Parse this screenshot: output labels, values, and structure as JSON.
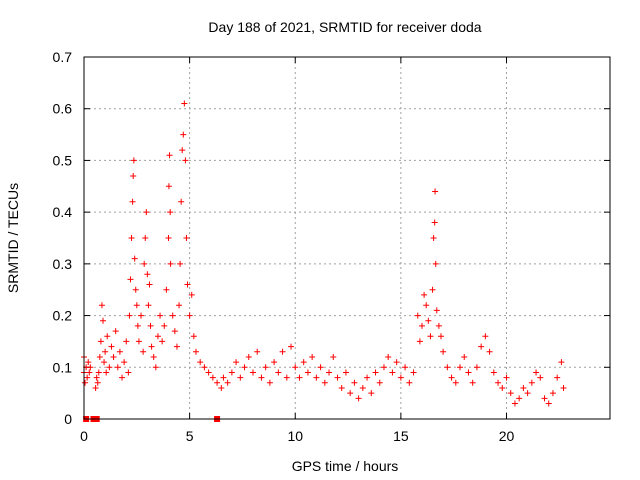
{
  "chart_data": {
    "type": "scatter",
    "title": "Day 188 of 2021, SRMTID for receiver doda",
    "xlabel": "GPS time / hours",
    "ylabel": "SRMTID / TECUs",
    "xlim": [
      0,
      24.9
    ],
    "ylim": [
      0,
      0.7
    ],
    "x_ticks": [
      0,
      5,
      10,
      15,
      20
    ],
    "x_tick_labels": [
      "0",
      "5",
      "10",
      "15",
      "20"
    ],
    "y_ticks": [
      0,
      0.1,
      0.2,
      0.3,
      0.4,
      0.5,
      0.6,
      0.7
    ],
    "y_tick_labels": [
      "0",
      "0.1",
      "0.2",
      "0.3",
      "0.4",
      "0.5",
      "0.6",
      "0.7"
    ],
    "grid": true,
    "marker": "plus",
    "color": "#ff0000",
    "series": [
      {
        "name": "SRMTID",
        "points": [
          [
            0.0,
            0.12
          ],
          [
            0.0,
            0.09
          ],
          [
            0.05,
            0.07
          ],
          [
            0.1,
            0.1
          ],
          [
            0.15,
            0.08
          ],
          [
            0.2,
            0.11
          ],
          [
            0.25,
            0.09
          ],
          [
            0.3,
            0.1
          ],
          [
            0.55,
            0.06
          ],
          [
            0.6,
            0.08
          ],
          [
            0.65,
            0.07
          ],
          [
            0.7,
            0.09
          ],
          [
            0.75,
            0.12
          ],
          [
            0.8,
            0.15
          ],
          [
            0.85,
            0.22
          ],
          [
            0.9,
            0.19
          ],
          [
            0.95,
            0.11
          ],
          [
            1.0,
            0.13
          ],
          [
            1.05,
            0.09
          ],
          [
            1.1,
            0.16
          ],
          [
            1.2,
            0.1
          ],
          [
            1.3,
            0.14
          ],
          [
            1.4,
            0.12
          ],
          [
            1.5,
            0.17
          ],
          [
            1.6,
            0.1
          ],
          [
            1.7,
            0.13
          ],
          [
            1.8,
            0.08
          ],
          [
            1.9,
            0.11
          ],
          [
            2.0,
            0.15
          ],
          [
            2.1,
            0.09
          ],
          [
            2.15,
            0.2
          ],
          [
            2.2,
            0.27
          ],
          [
            2.25,
            0.35
          ],
          [
            2.3,
            0.42
          ],
          [
            2.33,
            0.47
          ],
          [
            2.36,
            0.5
          ],
          [
            2.4,
            0.31
          ],
          [
            2.45,
            0.25
          ],
          [
            2.5,
            0.22
          ],
          [
            2.55,
            0.18
          ],
          [
            2.6,
            0.15
          ],
          [
            2.7,
            0.2
          ],
          [
            2.8,
            0.13
          ],
          [
            2.85,
            0.3
          ],
          [
            2.9,
            0.35
          ],
          [
            2.95,
            0.4
          ],
          [
            3.0,
            0.28
          ],
          [
            3.05,
            0.22
          ],
          [
            3.1,
            0.26
          ],
          [
            3.15,
            0.18
          ],
          [
            3.2,
            0.14
          ],
          [
            3.3,
            0.12
          ],
          [
            3.4,
            0.1
          ],
          [
            3.5,
            0.16
          ],
          [
            3.6,
            0.2
          ],
          [
            3.7,
            0.15
          ],
          [
            3.8,
            0.18
          ],
          [
            3.9,
            0.25
          ],
          [
            4.0,
            0.35
          ],
          [
            4.02,
            0.45
          ],
          [
            4.05,
            0.51
          ],
          [
            4.08,
            0.4
          ],
          [
            4.1,
            0.3
          ],
          [
            4.2,
            0.2
          ],
          [
            4.3,
            0.17
          ],
          [
            4.4,
            0.14
          ],
          [
            4.5,
            0.22
          ],
          [
            4.55,
            0.3
          ],
          [
            4.6,
            0.42
          ],
          [
            4.65,
            0.52
          ],
          [
            4.7,
            0.55
          ],
          [
            4.75,
            0.61
          ],
          [
            4.8,
            0.5
          ],
          [
            4.85,
            0.35
          ],
          [
            4.9,
            0.26
          ],
          [
            5.0,
            0.2
          ],
          [
            5.1,
            0.24
          ],
          [
            5.2,
            0.16
          ],
          [
            5.3,
            0.13
          ],
          [
            5.5,
            0.11
          ],
          [
            5.7,
            0.1
          ],
          [
            5.9,
            0.09
          ],
          [
            6.1,
            0.08
          ],
          [
            6.3,
            0.07
          ],
          [
            6.5,
            0.06
          ],
          [
            6.6,
            0.08
          ],
          [
            6.8,
            0.07
          ],
          [
            7.0,
            0.09
          ],
          [
            7.2,
            0.11
          ],
          [
            7.4,
            0.08
          ],
          [
            7.6,
            0.1
          ],
          [
            7.8,
            0.12
          ],
          [
            8.0,
            0.09
          ],
          [
            8.2,
            0.13
          ],
          [
            8.4,
            0.08
          ],
          [
            8.6,
            0.1
          ],
          [
            8.8,
            0.07
          ],
          [
            9.0,
            0.11
          ],
          [
            9.2,
            0.09
          ],
          [
            9.4,
            0.13
          ],
          [
            9.6,
            0.08
          ],
          [
            9.8,
            0.14
          ],
          [
            10.0,
            0.1
          ],
          [
            10.2,
            0.08
          ],
          [
            10.4,
            0.11
          ],
          [
            10.6,
            0.09
          ],
          [
            10.8,
            0.12
          ],
          [
            11.0,
            0.08
          ],
          [
            11.2,
            0.1
          ],
          [
            11.4,
            0.07
          ],
          [
            11.6,
            0.09
          ],
          [
            11.8,
            0.12
          ],
          [
            12.0,
            0.08
          ],
          [
            12.2,
            0.06
          ],
          [
            12.4,
            0.09
          ],
          [
            12.6,
            0.05
          ],
          [
            12.8,
            0.07
          ],
          [
            13.0,
            0.04
          ],
          [
            13.2,
            0.06
          ],
          [
            13.4,
            0.08
          ],
          [
            13.6,
            0.05
          ],
          [
            13.8,
            0.09
          ],
          [
            14.0,
            0.07
          ],
          [
            14.2,
            0.1
          ],
          [
            14.4,
            0.12
          ],
          [
            14.6,
            0.09
          ],
          [
            14.8,
            0.11
          ],
          [
            15.0,
            0.08
          ],
          [
            15.2,
            0.1
          ],
          [
            15.4,
            0.07
          ],
          [
            15.6,
            0.09
          ],
          [
            15.8,
            0.2
          ],
          [
            15.9,
            0.15
          ],
          [
            16.0,
            0.18
          ],
          [
            16.1,
            0.24
          ],
          [
            16.2,
            0.22
          ],
          [
            16.3,
            0.19
          ],
          [
            16.4,
            0.16
          ],
          [
            16.5,
            0.25
          ],
          [
            16.55,
            0.35
          ],
          [
            16.6,
            0.38
          ],
          [
            16.62,
            0.44
          ],
          [
            16.65,
            0.3
          ],
          [
            16.7,
            0.21
          ],
          [
            16.8,
            0.18
          ],
          [
            16.9,
            0.16
          ],
          [
            17.0,
            0.13
          ],
          [
            17.2,
            0.1
          ],
          [
            17.4,
            0.08
          ],
          [
            17.6,
            0.07
          ],
          [
            17.8,
            0.1
          ],
          [
            18.0,
            0.12
          ],
          [
            18.2,
            0.09
          ],
          [
            18.4,
            0.07
          ],
          [
            18.6,
            0.1
          ],
          [
            18.8,
            0.14
          ],
          [
            19.0,
            0.16
          ],
          [
            19.2,
            0.13
          ],
          [
            19.4,
            0.09
          ],
          [
            19.6,
            0.07
          ],
          [
            19.8,
            0.06
          ],
          [
            20.0,
            0.08
          ],
          [
            20.2,
            0.05
          ],
          [
            20.4,
            0.03
          ],
          [
            20.6,
            0.04
          ],
          [
            20.8,
            0.06
          ],
          [
            21.0,
            0.05
          ],
          [
            21.2,
            0.07
          ],
          [
            21.4,
            0.09
          ],
          [
            21.6,
            0.08
          ],
          [
            21.8,
            0.04
          ],
          [
            22.0,
            0.03
          ],
          [
            22.2,
            0.05
          ],
          [
            22.4,
            0.08
          ],
          [
            22.6,
            0.11
          ],
          [
            22.7,
            0.06
          ]
        ]
      }
    ],
    "zero_markers": [
      [
        0.1,
        0.0
      ],
      [
        0.45,
        0.0
      ],
      [
        0.6,
        0.0
      ],
      [
        6.3,
        0.0
      ]
    ]
  }
}
